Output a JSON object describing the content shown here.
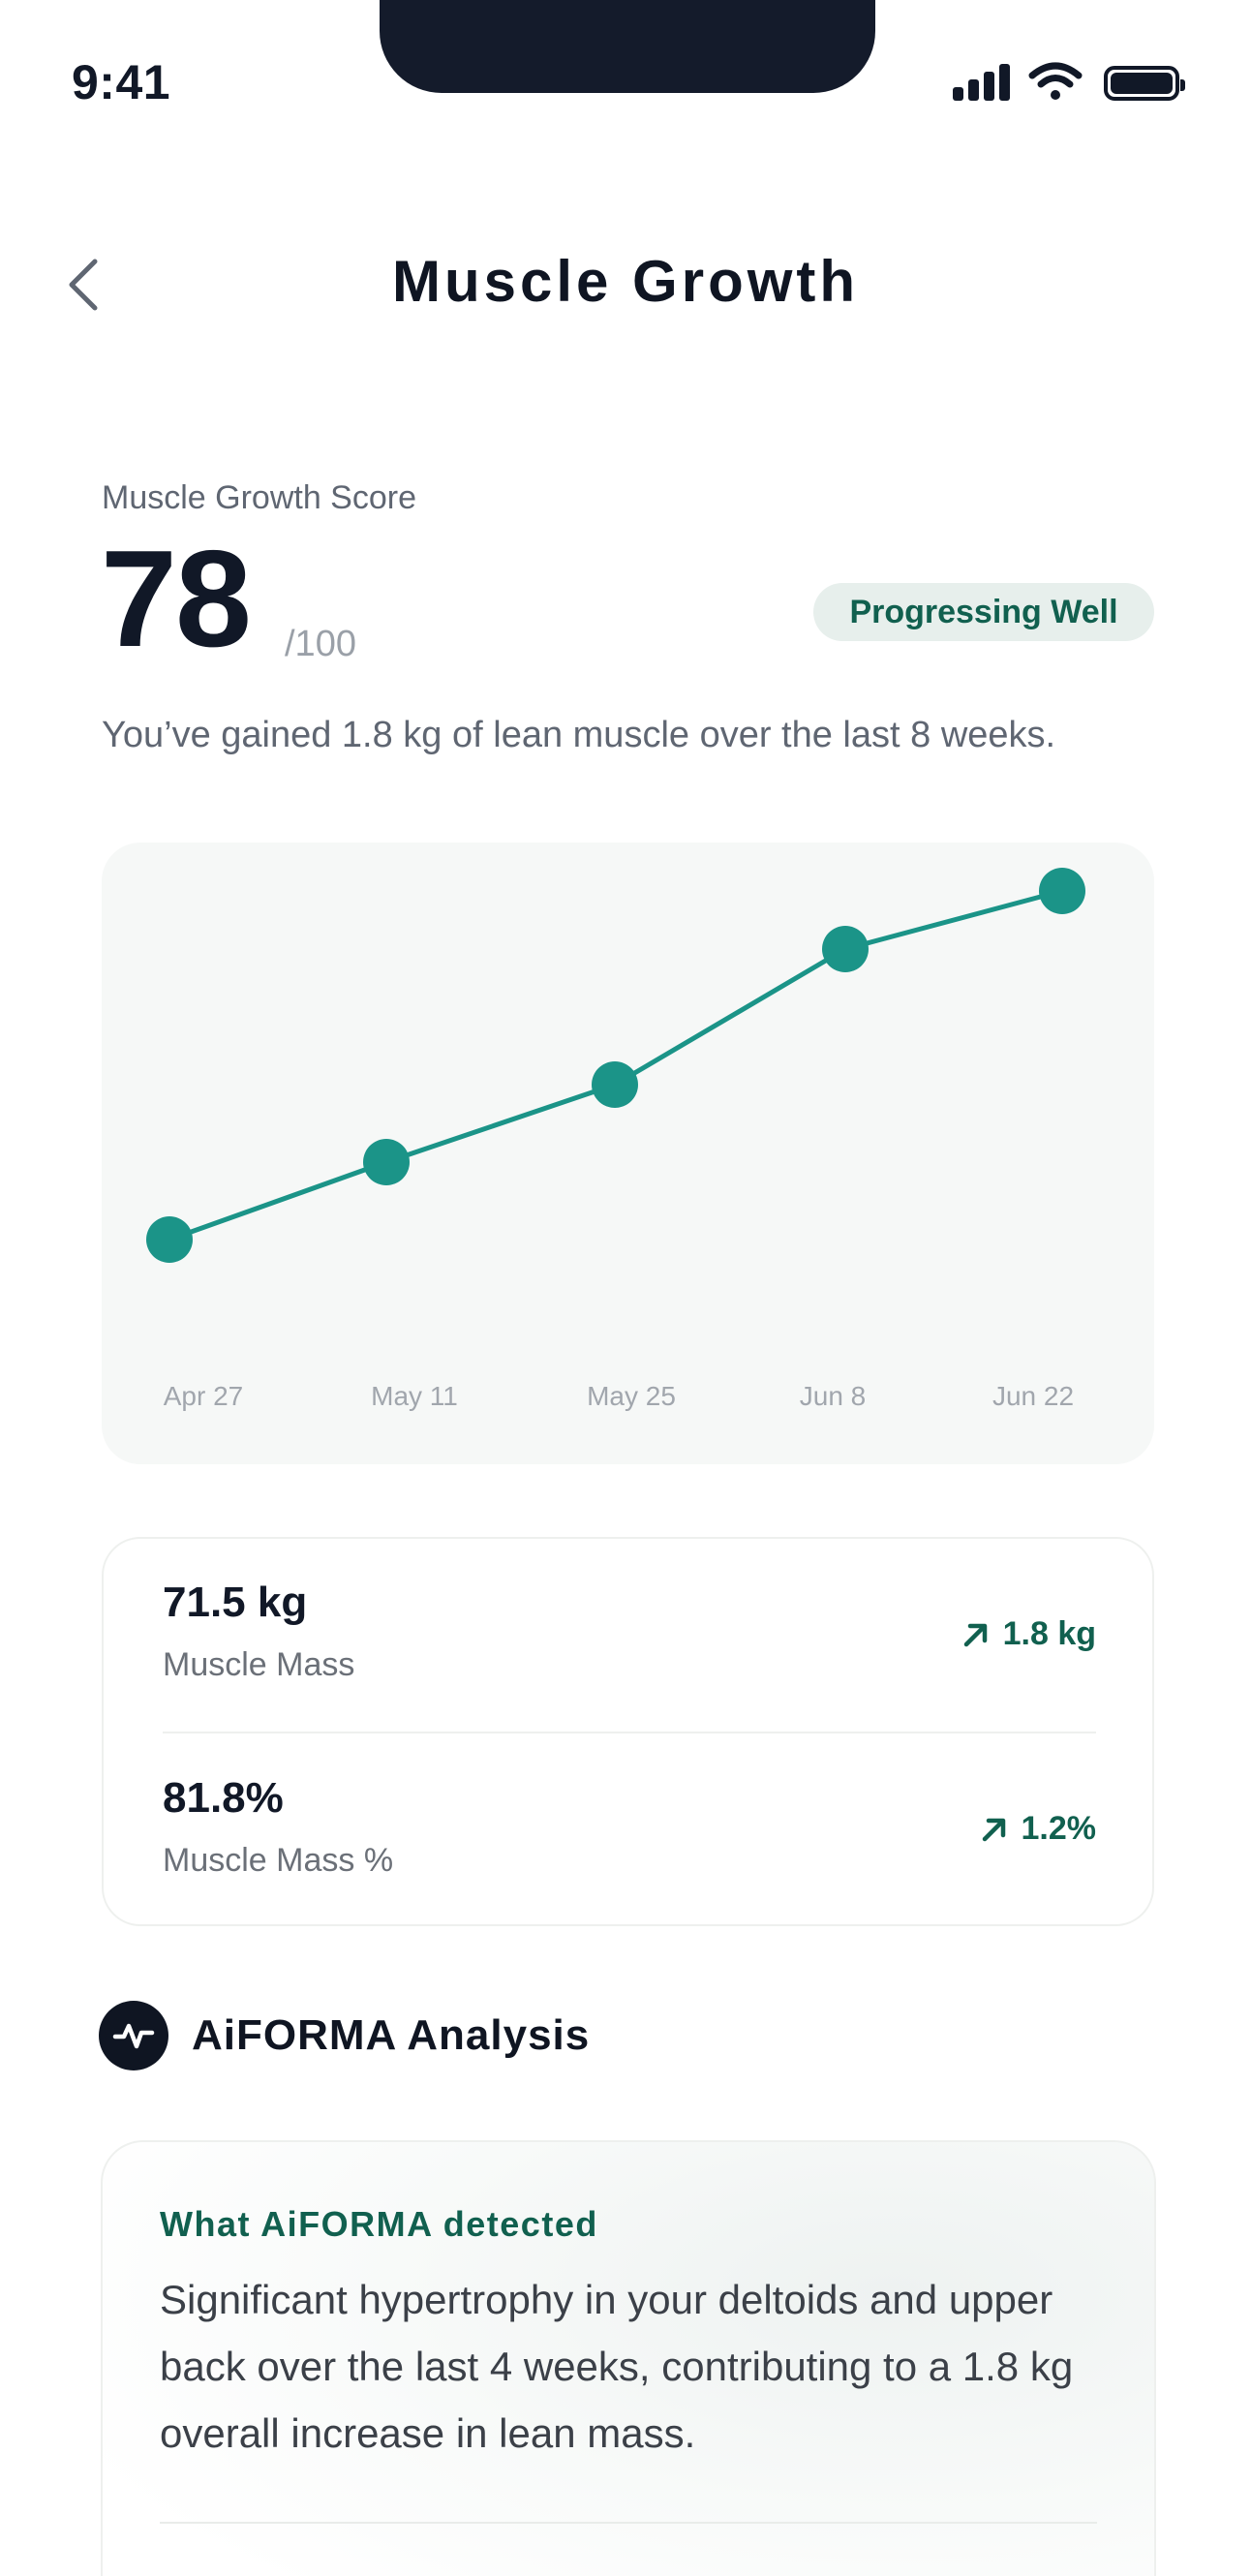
{
  "status_bar": {
    "time": "9:41"
  },
  "header": {
    "title": "Muscle Growth"
  },
  "score": {
    "label": "Muscle Growth Score",
    "value": "78",
    "max": "/100",
    "badge": "Progressing Well",
    "description": "You’ve gained 1.8 kg of lean muscle over the last 8 weeks."
  },
  "chart_data": {
    "type": "line",
    "categories": [
      "Apr 27",
      "May 11",
      "May 25",
      "Jun 8",
      "Jun 22"
    ],
    "series": [
      {
        "values": [
          69.7,
          70.1,
          70.5,
          71.2,
          71.5
        ]
      }
    ],
    "ylim": [
      69.0,
      72.0
    ],
    "grid": false,
    "color": "#1b9488"
  },
  "metrics": [
    {
      "value": "71.5 kg",
      "label": "Muscle Mass",
      "change": "1.8 kg"
    },
    {
      "value": "81.8%",
      "label": "Muscle Mass %",
      "change": "1.2%"
    }
  ],
  "analysis": {
    "title": "AiFORMA Analysis",
    "detected_label": "What AiFORMA detected",
    "detected_text": "Significant hypertrophy in your deltoids and upper back over the last 4 weeks, contributing to a 1.8 kg overall increase in lean mass."
  },
  "colors": {
    "accent": "#11604f",
    "chart_line": "#1b9488",
    "badge_bg": "#e7efec"
  }
}
